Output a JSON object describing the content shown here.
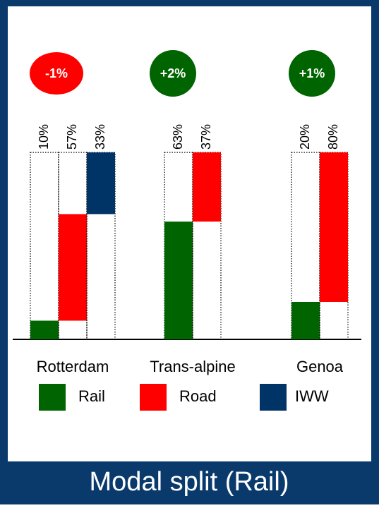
{
  "chart_data": {
    "type": "bar",
    "title": "Modal split (Rail)",
    "categories": [
      "Rotterdam",
      "Trans-alpine",
      "Genoa"
    ],
    "series": [
      {
        "name": "Rail",
        "color": "#006400",
        "values": [
          10,
          63,
          20
        ],
        "value_labels": [
          "10%",
          "63%",
          "20%"
        ]
      },
      {
        "name": "Road",
        "color": "#ff0000",
        "values": [
          57,
          37,
          80
        ],
        "value_labels": [
          "57%",
          "37%",
          "80%"
        ]
      },
      {
        "name": "IWW",
        "color": "#003366",
        "values": [
          33,
          null,
          null
        ],
        "value_labels": [
          "33%",
          null,
          null
        ]
      }
    ],
    "annotations": [
      "-1%",
      "+2%",
      "+1%"
    ],
    "annotation_colors": [
      "#ff0000",
      "#006400",
      "#006400"
    ],
    "ylim": [
      0,
      100
    ]
  }
}
